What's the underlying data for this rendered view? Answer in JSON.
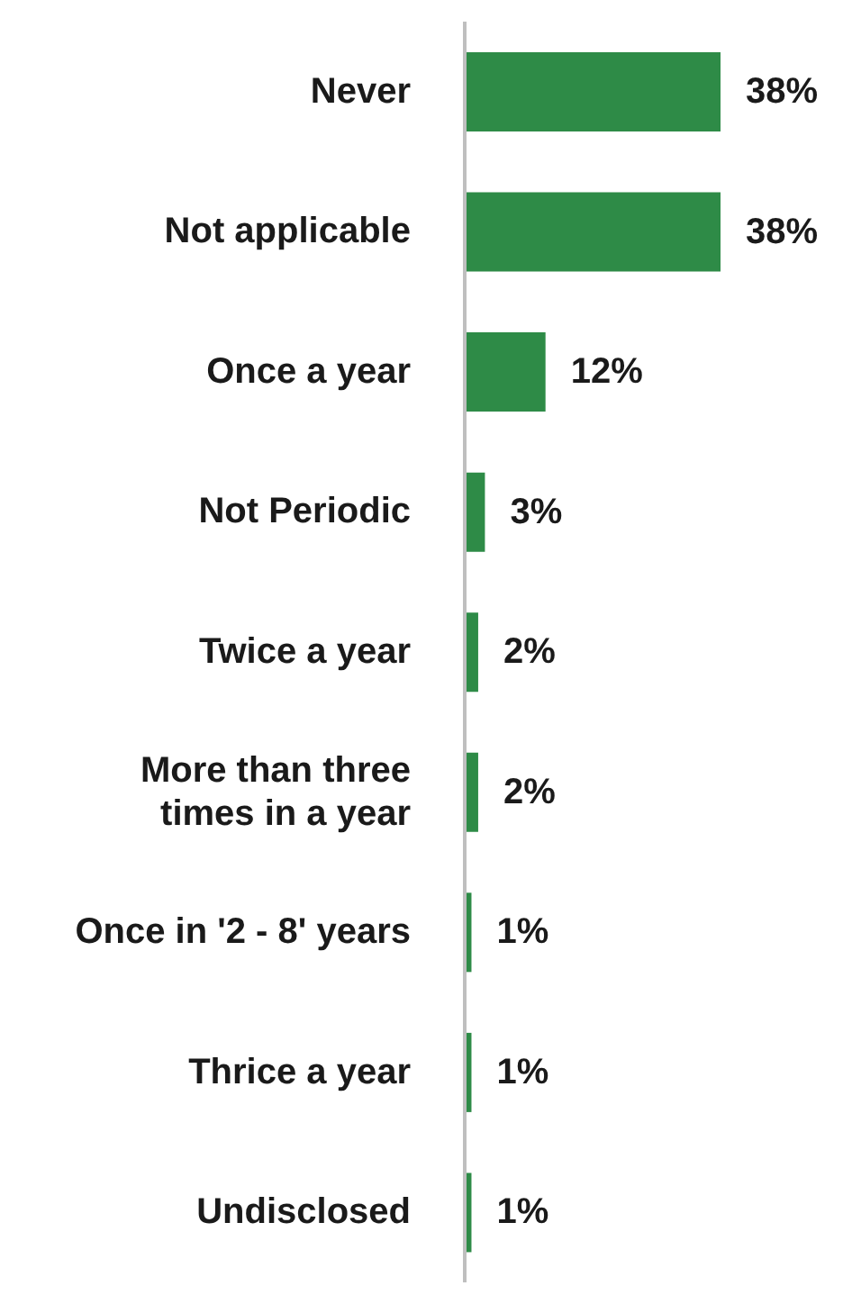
{
  "chart_data": {
    "type": "bar",
    "orientation": "horizontal",
    "categories": [
      "Never",
      "Not applicable",
      "Once a year",
      "Not Periodic",
      "Twice a year",
      "More than three times in a year",
      "Once in '2 - 8' years",
      "Thrice a year",
      "Undisclosed"
    ],
    "values": [
      38,
      38,
      12,
      3,
      2,
      2,
      1,
      1,
      1
    ],
    "value_labels": [
      "38%",
      "38%",
      "12%",
      "3%",
      "2%",
      "2%",
      "1%",
      "1%",
      "1%"
    ],
    "color": "#2e8b47"
  }
}
